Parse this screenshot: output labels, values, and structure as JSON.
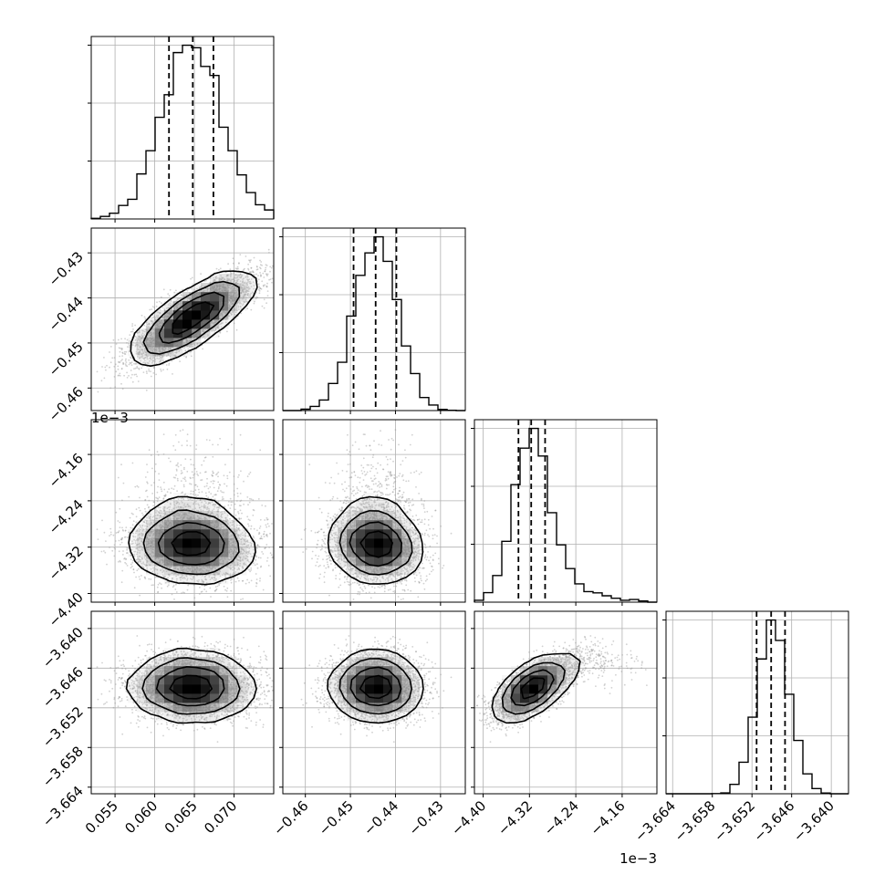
{
  "chart_data": {
    "type": "corner",
    "grid": true,
    "histogram_bins": 20,
    "quantile_lines_style": "dashed",
    "colors": {
      "line": "#000000",
      "grid": "#b0b0b0",
      "scatter": "#999999"
    },
    "parameters": [
      {
        "range": [
          0.052,
          0.075
        ],
        "ticks": [
          0.055,
          0.06,
          0.065,
          0.07
        ],
        "tick_labels": [
          "0.055",
          "0.060",
          "0.065",
          "0.070"
        ],
        "offset_text": "",
        "mean": 0.0648,
        "sd": 0.0037,
        "quantiles": [
          0.0618,
          0.0648,
          0.0674
        ]
      },
      {
        "range": [
          -0.465,
          -0.4245
        ],
        "ticks": [
          -0.46,
          -0.45,
          -0.44,
          -0.43
        ],
        "tick_labels": [
          "−0.46",
          "−0.45",
          "−0.44",
          "−0.43"
        ],
        "offset_text": "",
        "mean": -0.4443,
        "sd": 0.0047,
        "quantiles": [
          -0.4493,
          -0.4444,
          -0.4398
        ]
      },
      {
        "range": [
          -4.415,
          -4.1
        ],
        "ticks": [
          -4.4,
          -4.32,
          -4.24,
          -4.16
        ],
        "tick_labels": [
          "−4.40",
          "−4.32",
          "−4.24",
          "−4.16"
        ],
        "offset_text": "1e−3",
        "mean": -4.316,
        "sd": 0.03,
        "quantiles": [
          -4.339,
          -4.317,
          -4.293
        ]
      },
      {
        "range": [
          -3.665,
          -3.6374
        ],
        "ticks": [
          -3.664,
          -3.658,
          -3.652,
          -3.646,
          -3.64
        ],
        "tick_labels": [
          "−3.664",
          "−3.658",
          "−3.652",
          "−3.646",
          "−3.640"
        ],
        "offset_text": "",
        "mean": -3.6491,
        "sd": 0.0022,
        "quantiles": [
          -3.6513,
          -3.6491,
          -3.647
        ]
      }
    ],
    "correlations": [
      [
        0,
        1,
        0.8
      ],
      [
        0,
        2,
        0.0
      ],
      [
        0,
        3,
        0.0
      ],
      [
        1,
        2,
        -0.1
      ],
      [
        1,
        3,
        0.0
      ],
      [
        2,
        3,
        0.65
      ]
    ],
    "offset_labels": [
      {
        "text": "1e−3",
        "axis": "y",
        "row": 1
      },
      {
        "text": "1e−3",
        "axis": "x",
        "col": 2
      }
    ]
  }
}
